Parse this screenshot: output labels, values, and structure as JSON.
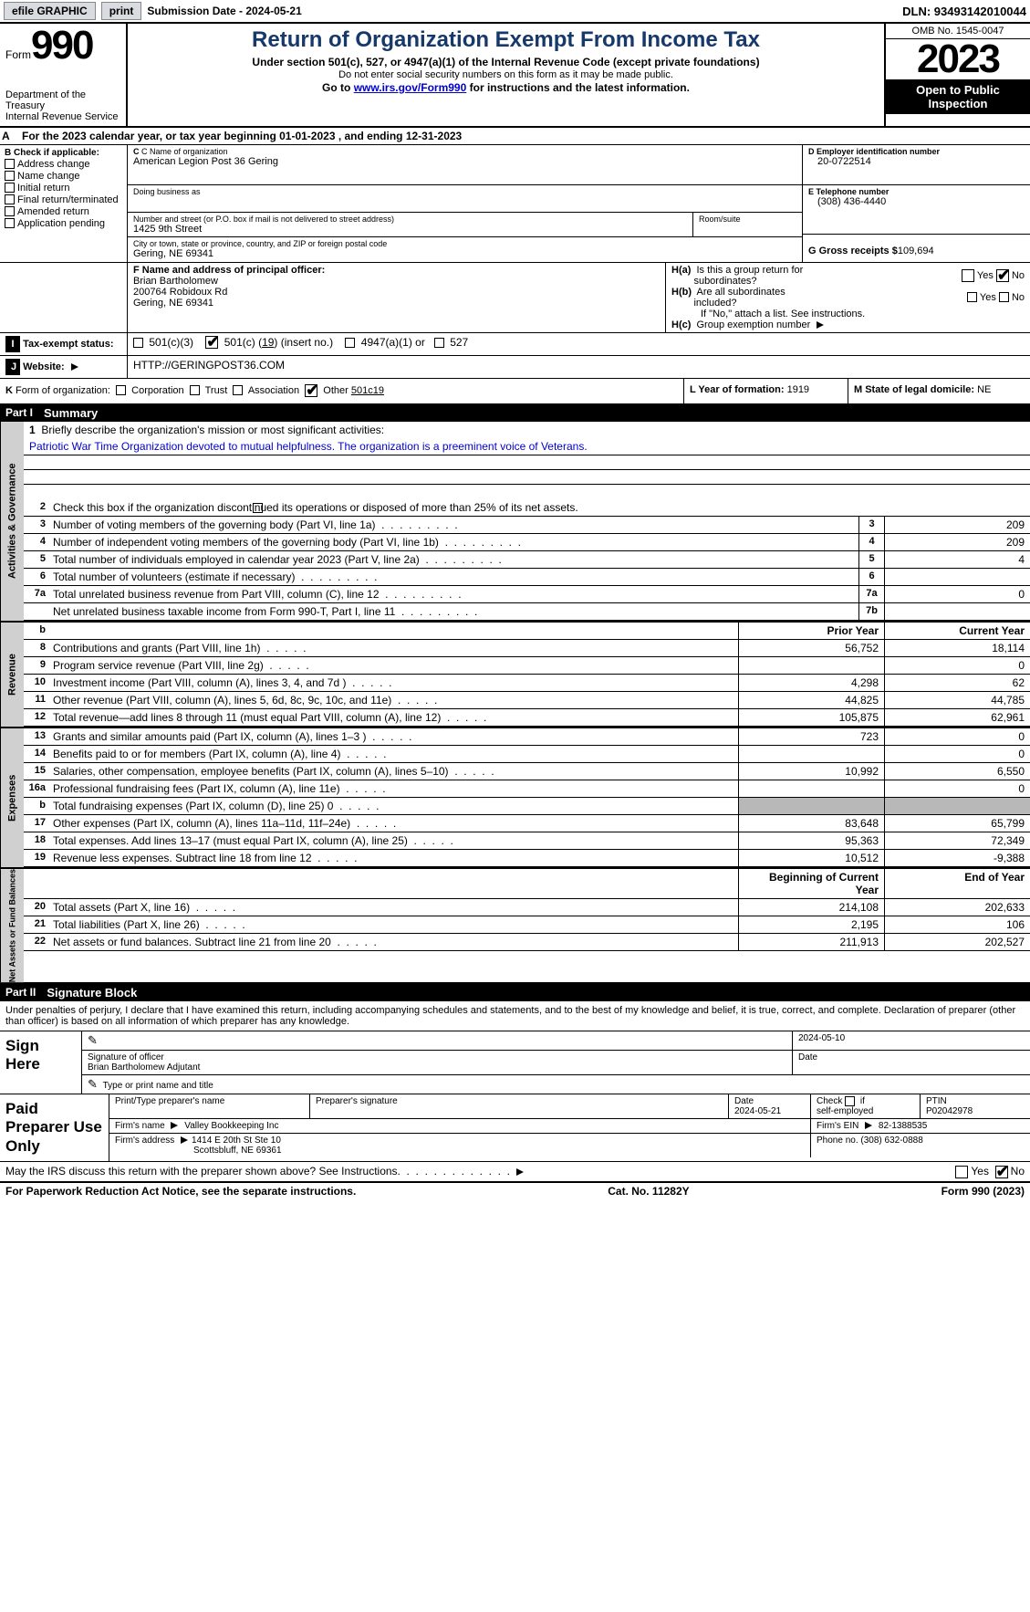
{
  "topbar": {
    "efile": "efile GRAPHIC",
    "print": "print",
    "submission_label": "Submission Date - 2024-05-21",
    "dln": "DLN: 93493142010044"
  },
  "header": {
    "form_word": "Form",
    "form_num": "990",
    "dept": "Department of the Treasury\nInternal Revenue Service",
    "title": "Return of Organization Exempt From Income Tax",
    "sub1": "Under section 501(c), 527, or 4947(a)(1) of the Internal Revenue Code (except private foundations)",
    "sub2": "Do not enter social security numbers on this form as it may be made public.",
    "goto_pre": "Go to ",
    "goto_link": "www.irs.gov/Form990",
    "goto_post": " for instructions and the latest information.",
    "omb": "OMB No. 1545-0047",
    "year": "2023",
    "open": "Open to Public Inspection"
  },
  "period": {
    "label_a": "A",
    "text": "For the 2023 calendar year, or tax year beginning 01-01-2023    , and ending 12-31-2023"
  },
  "boxB": {
    "hdr": "B Check if applicable:",
    "items": [
      "Address change",
      "Name change",
      "Initial return",
      "Final return/terminated",
      "Amended return",
      "Application pending"
    ]
  },
  "boxC": {
    "name_lbl": "C Name of organization",
    "name": "American Legion Post 36 Gering",
    "dba_lbl": "Doing business as",
    "dba": "",
    "street_lbl": "Number and street (or P.O. box if mail is not delivered to street address)",
    "room_lbl": "Room/suite",
    "street": "1425 9th Street",
    "city_lbl": "City or town, state or province, country, and ZIP or foreign postal code",
    "city": "Gering, NE  69341"
  },
  "boxD": {
    "ein_lbl": "D Employer identification number",
    "ein": "20-0722514",
    "phone_lbl": "E Telephone number",
    "phone": "(308) 436-4440",
    "gross_lbl": "G Gross receipts $",
    "gross": "109,694"
  },
  "boxF": {
    "lbl": "F  Name and address of principal officer:",
    "name": "Brian Bartholomew",
    "addr1": "200764 Robidoux Rd",
    "addr2": "Gering, NE  69341"
  },
  "boxH": {
    "ha_lbl": "H(a)  Is this a group return for subordinates?",
    "ha_yes": "Yes",
    "ha_no": "No",
    "hb_lbl": "H(b)  Are all subordinates included?",
    "hb_note": "If \"No,\" attach a list. See instructions.",
    "hc_lbl": "H(c)  Group exemption number",
    "hc_val": ""
  },
  "taxrow": {
    "I": "I",
    "label": "Tax-exempt status:",
    "c3": "501(c)(3)",
    "cx_pre": "501(c) (",
    "cx_num": "19",
    "cx_post": ") (insert no.)",
    "a1": "4947(a)(1) or",
    "s527": "527"
  },
  "webrow": {
    "J": "J",
    "label": "Website:",
    "val": "HTTP://GERINGPOST36.COM",
    "arrow": "▶"
  },
  "korg": {
    "K": "K",
    "label": "Form of organization:",
    "opts": [
      "Corporation",
      "Trust",
      "Association"
    ],
    "other_lbl": "Other",
    "other_val": "501c19",
    "L_lbl": "L Year of formation:",
    "L_val": "1919",
    "M_lbl": "M State of legal domicile:",
    "M_val": "NE"
  },
  "part1": {
    "num": "Part I",
    "title": "Summary"
  },
  "mission": {
    "num": "1",
    "lbl": "Briefly describe the organization's mission or most significant activities:",
    "text": "Patriotic War Time Organization devoted to mutual helpfulness. The organization is a preeminent voice of Veterans."
  },
  "gov": {
    "side": "Activities & Governance",
    "l2": "Check this box          if the organization discontinued its operations or disposed of more than 25% of its net assets.",
    "rows": [
      {
        "n": "3",
        "d": "Number of voting members of the governing body (Part VI, line 1a)",
        "b": "3",
        "v": "209"
      },
      {
        "n": "4",
        "d": "Number of independent voting members of the governing body (Part VI, line 1b)",
        "b": "4",
        "v": "209"
      },
      {
        "n": "5",
        "d": "Total number of individuals employed in calendar year 2023 (Part V, line 2a)",
        "b": "5",
        "v": "4"
      },
      {
        "n": "6",
        "d": "Total number of volunteers (estimate if necessary)",
        "b": "6",
        "v": ""
      },
      {
        "n": "7a",
        "d": "Total unrelated business revenue from Part VIII, column (C), line 12",
        "b": "7a",
        "v": "0"
      },
      {
        "n": "  ",
        "d": "Net unrelated business taxable income from Form 990-T, Part I, line 11",
        "b": "7b",
        "v": ""
      }
    ]
  },
  "rev": {
    "side": "Revenue",
    "hdr_b": "b",
    "hdr_prior": "Prior Year",
    "hdr_curr": "Current Year",
    "rows": [
      {
        "n": "8",
        "d": "Contributions and grants (Part VIII, line 1h)",
        "p": "56,752",
        "c": "18,114"
      },
      {
        "n": "9",
        "d": "Program service revenue (Part VIII, line 2g)",
        "p": "",
        "c": "0"
      },
      {
        "n": "10",
        "d": "Investment income (Part VIII, column (A), lines 3, 4, and 7d )",
        "p": "4,298",
        "c": "62"
      },
      {
        "n": "11",
        "d": "Other revenue (Part VIII, column (A), lines 5, 6d, 8c, 9c, 10c, and 11e)",
        "p": "44,825",
        "c": "44,785"
      },
      {
        "n": "12",
        "d": "Total revenue—add lines 8 through 11 (must equal Part VIII, column (A), line 12)",
        "p": "105,875",
        "c": "62,961"
      }
    ]
  },
  "exp": {
    "side": "Expenses",
    "rows": [
      {
        "n": "13",
        "d": "Grants and similar amounts paid (Part IX, column (A), lines 1–3 )",
        "p": "723",
        "c": "0"
      },
      {
        "n": "14",
        "d": "Benefits paid to or for members (Part IX, column (A), line 4)",
        "p": "",
        "c": "0"
      },
      {
        "n": "15",
        "d": "Salaries, other compensation, employee benefits (Part IX, column (A), lines 5–10)",
        "p": "10,992",
        "c": "6,550"
      },
      {
        "n": "16a",
        "d": "Professional fundraising fees (Part IX, column (A), line 11e)",
        "p": "",
        "c": "0"
      },
      {
        "n": "b",
        "d": "Total fundraising expenses (Part IX, column (D), line 25) 0",
        "p": "GRAY",
        "c": "GRAY"
      },
      {
        "n": "17",
        "d": "Other expenses (Part IX, column (A), lines 11a–11d, 11f–24e)",
        "p": "83,648",
        "c": "65,799"
      },
      {
        "n": "18",
        "d": "Total expenses. Add lines 13–17 (must equal Part IX, column (A), line 25)",
        "p": "95,363",
        "c": "72,349"
      },
      {
        "n": "19",
        "d": "Revenue less expenses. Subtract line 18 from line 12",
        "p": "10,512",
        "c": "-9,388"
      }
    ]
  },
  "net": {
    "side": "Net Assets or Fund Balances",
    "hdr_beg": "Beginning of Current Year",
    "hdr_end": "End of Year",
    "rows": [
      {
        "n": "20",
        "d": "Total assets (Part X, line 16)",
        "p": "214,108",
        "c": "202,633"
      },
      {
        "n": "21",
        "d": "Total liabilities (Part X, line 26)",
        "p": "2,195",
        "c": "106"
      },
      {
        "n": "22",
        "d": "Net assets or fund balances. Subtract line 21 from line 20",
        "p": "211,913",
        "c": "202,527"
      }
    ]
  },
  "part2": {
    "num": "Part II",
    "title": "Signature Block"
  },
  "sig": {
    "decl": "Under penalties of perjury, I declare that I have examined this return, including accompanying schedules and statements, and to the best of my knowledge and belief, it is true, correct, and complete. Declaration of preparer (other than officer) is based on all information of which preparer has any knowledge.",
    "sign_here": "Sign Here",
    "officer_sig_lbl": "Signature of officer",
    "officer_name": "Brian Bartholomew Adjutant",
    "officer_type_lbl": "Type or print name and title",
    "date_lbl": "Date",
    "sig_date": "2024-05-10",
    "paid": "Paid Preparer Use Only",
    "prep_name_lbl": "Print/Type preparer's name",
    "prep_name": "",
    "prep_sig_lbl": "Preparer's signature",
    "prep_date_lbl": "Date",
    "prep_date": "2024-05-21",
    "self_emp": "Check        if self-employed",
    "ptin_lbl": "PTIN",
    "ptin": "P02042978",
    "firm_name_lbl": "Firm's name",
    "firm_name": "Valley Bookkeeping Inc",
    "firm_ein_lbl": "Firm's EIN",
    "firm_ein": "82-1388535",
    "firm_addr_lbl": "Firm's address",
    "firm_addr1": "1414 E 20th St Ste 10",
    "firm_addr2": "Scottsbluff, NE  69361",
    "firm_phone_lbl": "Phone no.",
    "firm_phone": "(308) 632-0888",
    "discuss": "May the IRS discuss this return with the preparer shown above? See Instructions.",
    "yes": "Yes",
    "no": "No"
  },
  "footer": {
    "pra": "For Paperwork Reduction Act Notice, see the separate instructions.",
    "cat": "Cat. No. 11282Y",
    "form": "Form 990 (2023)"
  },
  "colors": {
    "title": "#16386a",
    "link": "#0000cc",
    "black": "#000000",
    "gray_bg": "#d0d0d0",
    "gray_cell": "#b8b8b8",
    "btn_bg": "#d8dce0"
  }
}
